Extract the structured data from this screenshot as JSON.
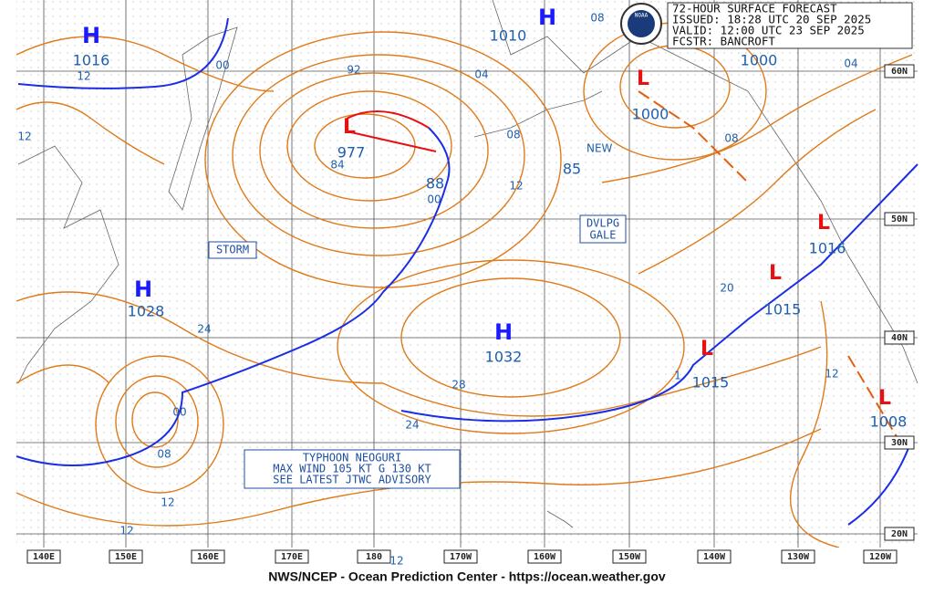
{
  "header": {
    "lines": [
      "72-HOUR SURFACE FORECAST",
      "ISSUED: 18:28 UTC 20 SEP 2025",
      "VALID:  12:00 UTC 23 SEP 2025",
      "FCSTR:  BANCROFT"
    ]
  },
  "centers": [
    {
      "letter": "H",
      "pressure": 1016
    },
    {
      "letter": "H",
      "pressure": 1028
    },
    {
      "letter": "H",
      "pressure": 1010
    },
    {
      "letter": "H",
      "pressure": 1032
    },
    {
      "letter": "L",
      "pressure": 977
    },
    {
      "letter": "L",
      "pressure": 1000
    },
    {
      "letter": "L",
      "pressure": 1016
    },
    {
      "letter": "L",
      "pressure": 1015
    },
    {
      "letter": "L",
      "pressure": 1015
    },
    {
      "letter": "L",
      "pressure": 1008
    }
  ],
  "new_low": {
    "label": "NEW",
    "pressure": 85
  },
  "pressure_labels": [
    1000
  ],
  "isobar_labels": [
    "12",
    "12",
    "00",
    "92",
    "04",
    "08",
    "04",
    "08",
    "84",
    "88",
    "00",
    "12",
    "08",
    "20",
    "24",
    "28",
    "24",
    "1",
    "12",
    "00",
    "08",
    "12",
    "12",
    "12"
  ],
  "boxes": {
    "storm": "STORM",
    "gale": [
      "DVLPG",
      "GALE"
    ],
    "typhoon": [
      "TYPHOON NEOGURI",
      "MAX WIND 105 KT G 130 KT",
      "SEE LATEST JTWC ADVISORY"
    ]
  },
  "longitudes": [
    "140E",
    "150E",
    "160E",
    "170E",
    "180",
    "170W",
    "160W",
    "150W",
    "140W",
    "130W",
    "120W"
  ],
  "latitudes": [
    "60N",
    "50N",
    "40N",
    "30N",
    "20N"
  ],
  "footer": "NWS/NCEP - Ocean Prediction Center - https://ocean.weather.gov"
}
